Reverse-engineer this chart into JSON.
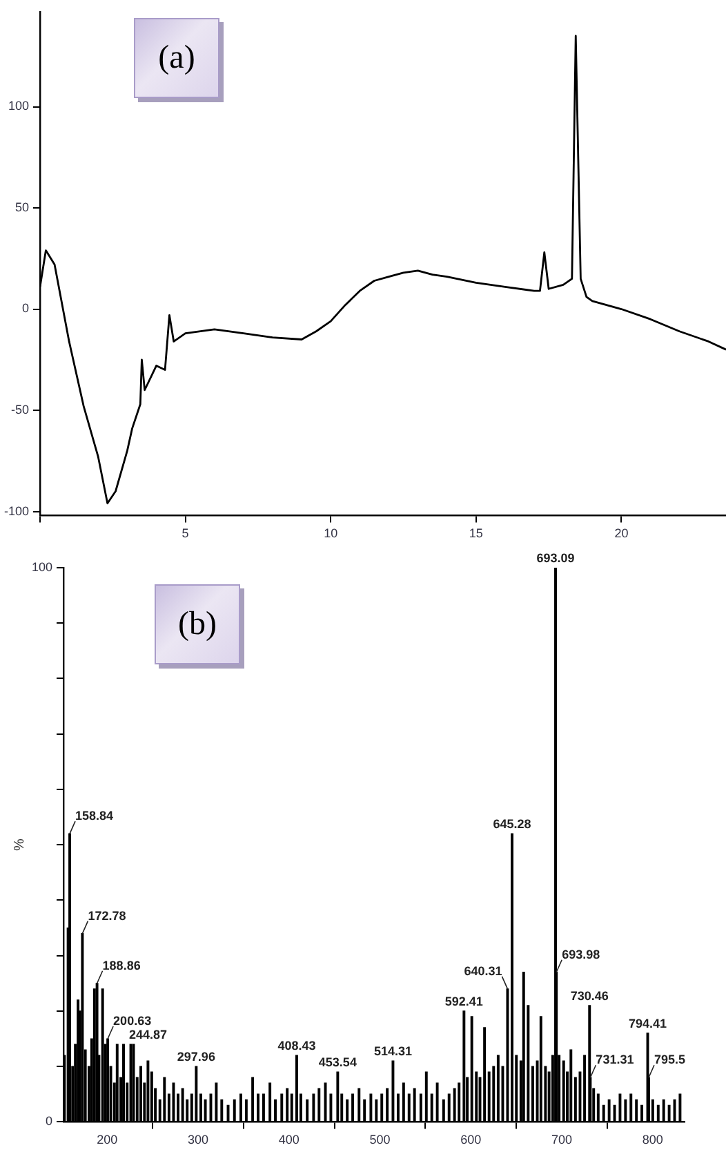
{
  "chart_data": [
    {
      "type": "line",
      "annotations": [
        "(a)"
      ],
      "grid": false,
      "xlim": [
        0,
        23.6
      ],
      "ylim": [
        -102,
        147
      ],
      "xticks": [
        {
          "value": 0,
          "label": null
        },
        5,
        10,
        15,
        20
      ],
      "yticks": [
        -100,
        -50,
        0,
        50,
        100
      ],
      "series": [
        {
          "color": "#000000",
          "x": [
            0,
            0.2,
            0.5,
            1.0,
            1.5,
            2.0,
            2.32,
            2.6,
            3.0,
            3.17,
            3.45,
            3.5,
            3.6,
            4.0,
            4.3,
            4.45,
            4.6,
            5,
            6,
            7,
            8,
            9,
            9.5,
            10,
            10.5,
            11,
            11.5,
            12,
            12.5,
            13,
            13.5,
            14,
            15,
            16,
            17,
            17.2,
            17.35,
            17.5,
            18,
            18.3,
            18.43,
            18.6,
            18.8,
            19,
            20,
            21,
            22,
            23,
            23.6
          ],
          "values": [
            11,
            29,
            22,
            -16,
            -48,
            -73,
            -96,
            -90,
            -70,
            -59,
            -47,
            -25,
            -40,
            -28,
            -30,
            -3,
            -16,
            -12,
            -10,
            -12,
            -14,
            -15,
            -11,
            -6,
            2,
            9,
            14,
            16,
            18,
            19,
            17,
            16,
            13,
            11,
            9,
            9,
            28,
            10,
            12,
            15,
            135,
            15,
            6,
            4,
            0,
            -5,
            -11,
            -16,
            -20
          ]
        }
      ]
    },
    {
      "type": "bar",
      "ylabel": "%",
      "grid": false,
      "xlim": [
        152,
        835
      ],
      "ylim": [
        0,
        100
      ],
      "xticks": [
        200,
        300,
        400,
        500,
        600,
        700,
        800
      ],
      "yticks": [
        0,
        {
          "value": 10,
          "label": null
        },
        {
          "value": 20,
          "label": null
        },
        {
          "value": 30,
          "label": null
        },
        {
          "value": 40,
          "label": null
        },
        {
          "value": 50,
          "label": null
        },
        {
          "value": 60,
          "label": null
        },
        {
          "value": 70,
          "label": null
        },
        {
          "value": 80,
          "label": null
        },
        {
          "value": 90,
          "label": null
        },
        100
      ],
      "annotations": [
        "(b)",
        {
          "text": "158.84",
          "x": 158.84,
          "y": 52
        },
        {
          "text": "172.78",
          "x": 172.78,
          "y": 34
        },
        {
          "text": "188.86",
          "x": 188.86,
          "y": 25
        },
        {
          "text": "200.63",
          "x": 200.63,
          "y": 15
        },
        {
          "text": "244.87",
          "x": 244.87,
          "y": 11
        },
        {
          "text": "297.96",
          "x": 297.96,
          "y": 10
        },
        {
          "text": "408.43",
          "x": 408.43,
          "y": 12
        },
        {
          "text": "453.54",
          "x": 453.54,
          "y": 9
        },
        {
          "text": "514.31",
          "x": 514.31,
          "y": 11
        },
        {
          "text": "592.41",
          "x": 592.41,
          "y": 20
        },
        {
          "text": "640.31",
          "x": 640.31,
          "y": 24
        },
        {
          "text": "645.28",
          "x": 645.28,
          "y": 52
        },
        {
          "text": "693.09",
          "x": 693.09,
          "y": 100
        },
        {
          "text": "693.98",
          "x": 693.98,
          "y": 27
        },
        {
          "text": "730.46",
          "x": 730.46,
          "y": 21
        },
        {
          "text": "731.31",
          "x": 731.31,
          "y": 8
        },
        {
          "text": "794.41",
          "x": 794.41,
          "y": 16
        },
        {
          "text": "795.5",
          "x": 795.5,
          "y": 8
        }
      ],
      "series": [
        {
          "color": "#000000",
          "x": [
            153,
            157,
            158.84,
            162,
            165,
            168,
            170,
            172.78,
            176,
            180,
            183,
            186,
            188.86,
            191,
            195,
            198,
            200.63,
            204,
            208,
            211,
            215,
            218,
            222,
            226,
            229,
            233,
            237,
            241,
            244.87,
            249,
            253,
            258,
            263,
            268,
            273,
            278,
            283,
            288,
            293,
            297.96,
            303,
            308,
            314,
            320,
            326,
            333,
            340,
            347,
            353,
            360,
            366,
            372,
            379,
            385,
            392,
            398,
            403,
            408.43,
            413,
            420,
            427,
            433,
            440,
            446,
            453.54,
            458,
            464,
            470,
            477,
            483,
            490,
            496,
            502,
            508,
            514.31,
            520,
            526,
            532,
            538,
            545,
            551,
            557,
            563,
            570,
            576,
            582,
            587,
            592.41,
            596,
            601,
            606,
            610,
            615,
            620,
            625,
            630,
            635,
            640.31,
            645.28,
            650,
            655,
            658,
            663,
            668,
            673,
            677,
            682,
            686,
            690,
            693.09,
            693.98,
            697,
            702,
            706,
            710,
            715,
            720,
            725,
            730.46,
            731.31,
            735,
            740,
            746,
            752,
            758,
            764,
            770,
            776,
            782,
            788,
            794.41,
            795.5,
            800,
            806,
            812,
            818,
            824,
            830
          ],
          "values": [
            12,
            35,
            52,
            10,
            14,
            22,
            20,
            34,
            13,
            10,
            15,
            24,
            25,
            12,
            24,
            14,
            15,
            10,
            7,
            14,
            8,
            14,
            7,
            14,
            14,
            8,
            10,
            7,
            11,
            9,
            6,
            4,
            8,
            5,
            7,
            5,
            6,
            4,
            5,
            10,
            5,
            4,
            5,
            7,
            4,
            3,
            4,
            5,
            4,
            8,
            5,
            5,
            7,
            4,
            5,
            6,
            5,
            12,
            5,
            4,
            5,
            6,
            7,
            5,
            9,
            5,
            4,
            5,
            6,
            4,
            5,
            4,
            5,
            6,
            11,
            5,
            7,
            5,
            6,
            5,
            9,
            5,
            7,
            4,
            5,
            6,
            7,
            20,
            8,
            19,
            9,
            8,
            17,
            9,
            10,
            12,
            10,
            24,
            52,
            12,
            11,
            27,
            21,
            10,
            11,
            19,
            10,
            9,
            12,
            100,
            27,
            12,
            11,
            9,
            13,
            8,
            9,
            12,
            21,
            8,
            6,
            5,
            3,
            4,
            3,
            5,
            4,
            5,
            4,
            3,
            16,
            8,
            4,
            3,
            4,
            3,
            4,
            5
          ]
        }
      ]
    }
  ]
}
